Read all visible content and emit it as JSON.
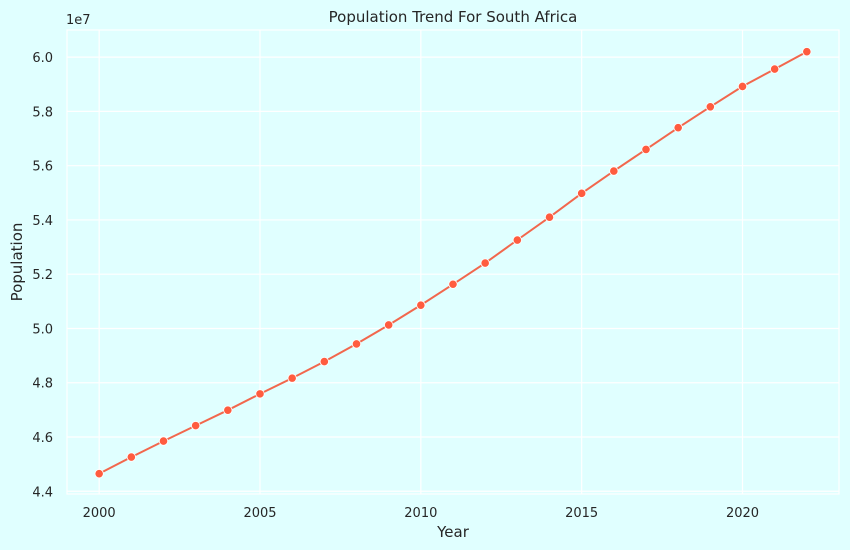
{
  "chart_data": {
    "type": "line",
    "title": "Population Trend For South Africa",
    "xlabel": "Year",
    "ylabel": "Population",
    "y_offset_label": "1e7",
    "xlim": [
      1999.0,
      2023.0
    ],
    "ylim": [
      43900000,
      61000000
    ],
    "x_ticks": [
      2000,
      2005,
      2010,
      2015,
      2020
    ],
    "y_ticks": [
      44000000,
      46000000,
      48000000,
      50000000,
      52000000,
      54000000,
      56000000,
      58000000,
      60000000
    ],
    "y_tick_labels": [
      "4.4",
      "4.6",
      "4.8",
      "5.0",
      "5.2",
      "5.4",
      "5.6",
      "5.8",
      "6.0"
    ],
    "grid": true,
    "colors": {
      "background": "#e0ffff",
      "grid": "#ffffff",
      "line": "#f2674d",
      "marker": "#ff5c3f"
    },
    "series": [
      {
        "x": [
          2000,
          2001,
          2002,
          2003,
          2004,
          2005,
          2006,
          2007,
          2008,
          2009,
          2010,
          2011,
          2012,
          2013,
          2014,
          2015,
          2016,
          2017,
          2018,
          2019,
          2020,
          2021,
          2022
        ],
        "values": [
          44650000,
          45260000,
          45850000,
          46420000,
          46990000,
          47590000,
          48170000,
          48780000,
          49430000,
          50130000,
          50860000,
          51630000,
          52410000,
          53260000,
          54100000,
          54980000,
          55800000,
          56600000,
          57400000,
          58170000,
          58920000,
          59560000,
          60200000
        ]
      }
    ]
  }
}
